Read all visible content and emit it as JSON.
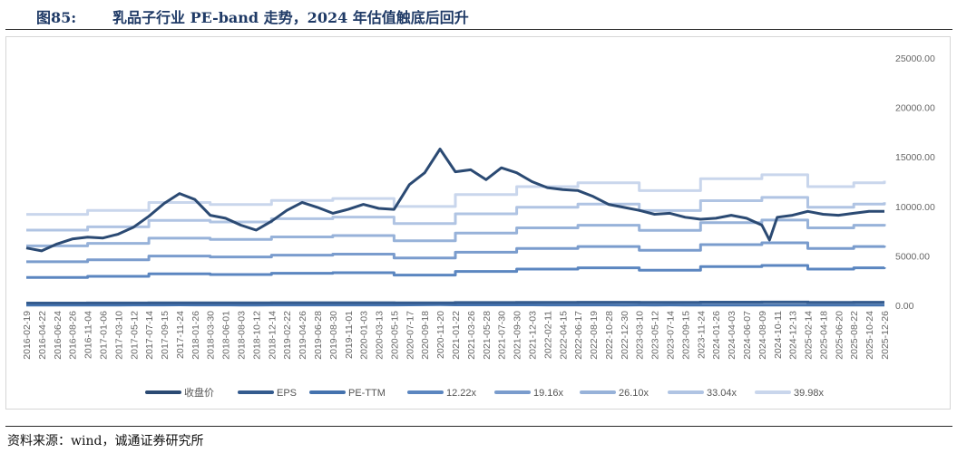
{
  "header": {
    "figure_number": "图85:",
    "title": "乳品子行业 PE-band 走势，2024 年估值触底后回升"
  },
  "footer": {
    "source": "资料来源：wind，诚通证券研究所"
  },
  "chart_data": {
    "type": "line",
    "title": "",
    "xlabel": "",
    "ylabel": "",
    "ylim": [
      0,
      25000
    ],
    "y_ticks": [
      "0.00",
      "5000.00",
      "10000.00",
      "15000.00",
      "20000.00",
      "25000.00"
    ],
    "grid": false,
    "legend_position": "bottom",
    "x_tick_labels": [
      "2016-02-19",
      "2016-04-22",
      "2016-06-24",
      "2016-08-26",
      "2016-11-04",
      "2017-01-06",
      "2017-03-10",
      "2017-05-12",
      "2017-07-14",
      "2017-09-15",
      "2017-11-24",
      "2018-01-26",
      "2018-03-30",
      "2018-06-01",
      "2018-08-03",
      "2018-10-12",
      "2018-12-14",
      "2019-02-22",
      "2019-04-26",
      "2019-06-28",
      "2019-08-30",
      "2019-11-01",
      "2020-01-03",
      "2020-03-13",
      "2020-05-15",
      "2020-07-17",
      "2020-09-18",
      "2020-11-20",
      "2021-01-22",
      "2021-03-26",
      "2021-05-28",
      "2021-07-30",
      "2021-09-30",
      "2021-12-03",
      "2022-02-11",
      "2022-04-15",
      "2022-06-17",
      "2022-08-19",
      "2022-10-28",
      "2022-12-30",
      "2023-03-10",
      "2023-05-12",
      "2023-07-14",
      "2023-09-15",
      "2023-11-24",
      "2024-01-26",
      "2024-04-03",
      "2024-06-07",
      "2024-08-09",
      "2024-10-11",
      "2024-12-13",
      "2025-02-14",
      "2025-04-18",
      "2025-06-20",
      "2025-08-22",
      "2025-10-24",
      "2025-12-26"
    ],
    "x_values": [
      0,
      4,
      8,
      12,
      16,
      20,
      24,
      28,
      32,
      36,
      40,
      44,
      48,
      52,
      56,
      60,
      64,
      68,
      72,
      76,
      80,
      84,
      88,
      92,
      96,
      100,
      104,
      108,
      112,
      116,
      120,
      124,
      128,
      132,
      136,
      140,
      144,
      148,
      152,
      156,
      160,
      164,
      168,
      172,
      176,
      180,
      184,
      188,
      192,
      196,
      200,
      204,
      208,
      212,
      216,
      220,
      224
    ],
    "eps_x": [
      0,
      16,
      32,
      48,
      64,
      80,
      96,
      112,
      128,
      144,
      160,
      176,
      192,
      204,
      216,
      224
    ],
    "eps_values": [
      230,
      240,
      260,
      255,
      265,
      270,
      250,
      280,
      300,
      310,
      290,
      320,
      330,
      300,
      310,
      315
    ],
    "multiples": [
      12.22,
      19.16,
      26.1,
      33.04,
      39.98
    ],
    "price_x": [
      0,
      4,
      8,
      12,
      16,
      20,
      24,
      28,
      32,
      36,
      40,
      44,
      48,
      52,
      56,
      60,
      64,
      68,
      72,
      76,
      80,
      84,
      88,
      92,
      96,
      100,
      104,
      108,
      112,
      116,
      120,
      124,
      128,
      132,
      136,
      140,
      144,
      148,
      152,
      156,
      160,
      164,
      168,
      172,
      176,
      180,
      184,
      188,
      192,
      194,
      196,
      200,
      204,
      208,
      212,
      216,
      220,
      224
    ],
    "price_values": [
      5800,
      5500,
      6200,
      6700,
      6900,
      6800,
      7200,
      7900,
      9000,
      10300,
      11300,
      10700,
      9100,
      8800,
      8100,
      7600,
      8500,
      9600,
      10400,
      9900,
      9300,
      9700,
      10200,
      9800,
      9700,
      12200,
      13400,
      15800,
      13500,
      13700,
      12700,
      13900,
      13400,
      12500,
      11900,
      11700,
      11600,
      11000,
      10200,
      9900,
      9600,
      9200,
      9300,
      8900,
      8700,
      8800,
      9100,
      8800,
      8100,
      6600,
      8900,
      9100,
      9500,
      9200,
      9100,
      9300,
      9500,
      9500
    ],
    "series": [
      {
        "name": "收盘价",
        "color": "#2b4a73"
      },
      {
        "name": "EPS",
        "color": "#345b8e"
      },
      {
        "name": "PE-TTM",
        "color": "#4472ae"
      },
      {
        "name": "12.22x",
        "color": "#5b86c0"
      },
      {
        "name": "19.16x",
        "color": "#7a9ccd"
      },
      {
        "name": "26.10x",
        "color": "#97b2d9"
      },
      {
        "name": "33.04x",
        "color": "#b0c4e3"
      },
      {
        "name": "39.98x",
        "color": "#c9d6ec"
      }
    ]
  }
}
